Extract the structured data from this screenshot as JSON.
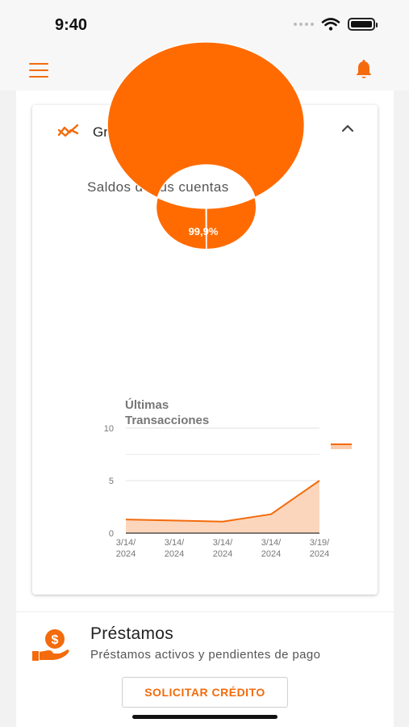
{
  "status_bar": {
    "time": "9:40"
  },
  "header": {
    "menu_icon": "hamburger-icon",
    "logo_icon": "brand-logo",
    "notifications_icon": "bell-icon",
    "accent_color": "#f36b0d"
  },
  "charts_section": {
    "title": "Gráficos",
    "icon": "trend-chart-icon",
    "collapse_icon": "chevron-up-icon",
    "donut": {
      "title": "Saldos de tus cuentas",
      "slices": [
        {
          "label": "99,9%",
          "value": 99.9,
          "color": "#ff6b00"
        },
        {
          "label": "",
          "value": 0.1,
          "color": "#ff6b00"
        }
      ]
    }
  },
  "chart_data": {
    "type": "area",
    "title_line1": "Últimas",
    "title_line2": "Transacciones",
    "categories": [
      [
        "3/14/",
        "2024"
      ],
      [
        "3/14/",
        "2024"
      ],
      [
        "3/14/",
        "2024"
      ],
      [
        "3/14/",
        "2024"
      ],
      [
        "3/19/",
        "2024"
      ]
    ],
    "series": [
      {
        "values": [
          1.3,
          1.2,
          1.1,
          1.8,
          5.0
        ],
        "color": "#f36b0d"
      }
    ],
    "yticks": [
      "0",
      "5",
      "10"
    ],
    "ylim": [
      0,
      10
    ]
  },
  "loans": {
    "icon": "money-hand-icon",
    "title": "Préstamos",
    "subtitle": "Préstamos activos y pendientes de pago",
    "button_label": "SOLICITAR CRÉDITO"
  }
}
